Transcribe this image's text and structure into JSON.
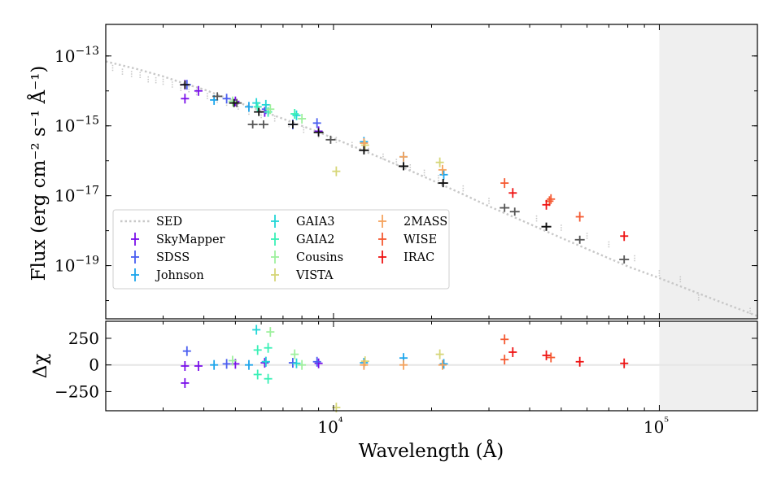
{
  "chart_data": [
    {
      "type": "scatter",
      "panel": "sed",
      "title": "",
      "xlabel": "Wavelength (Å)",
      "ylabel": "Flux (erg cm⁻² s⁻¹ Å⁻¹)",
      "xscale": "log",
      "yscale": "log",
      "xlim": [
        2000,
        200000
      ],
      "ylim": [
        3e-21,
        8e-13
      ],
      "y_ticks": [
        {
          "value": 1e-13,
          "label": "10−13"
        },
        {
          "value": 1e-15,
          "label": "10−15"
        },
        {
          "value": 1e-17,
          "label": "10−17"
        },
        {
          "value": 1e-19,
          "label": "10−19"
        }
      ],
      "shaded_xrange": [
        100000,
        200000
      ],
      "legend_position": "lower-left",
      "legend": [
        "SED",
        "SkyMapper",
        "SDSS",
        "Johnson",
        "GAIA3",
        "GAIA2",
        "Cousins",
        "VISTA",
        "2MASS",
        "WISE",
        "IRAC"
      ],
      "colors": {
        "SED": "#c8c8c8",
        "SkyMapper": "#7a10ea",
        "SDSS": "#4a5ef0",
        "Johnson": "#1ea6ec",
        "GAIA3": "#22d6d6",
        "GAIA2": "#3af0b6",
        "Cousins": "#9ef09e",
        "VISTA": "#d6d678",
        "2MASS": "#f5a35e",
        "WISE": "#f55a32",
        "IRAC": "#ee1212",
        "model": "#555555",
        "model_dark": "#111111"
      },
      "sed_curve": {
        "name": "SED",
        "x": [
          2000,
          2500,
          3000,
          3500,
          4000,
          5000,
          6000,
          7000,
          8000,
          9000,
          10000,
          12000,
          14000,
          16000,
          20000,
          25000,
          30000,
          40000,
          50000,
          60000,
          80000,
          100000,
          150000,
          200000
        ],
        "y": [
          7e-14,
          4.2e-14,
          2.6e-14,
          1.6e-14,
          1.1e-14,
          5e-15,
          2.7e-15,
          1.6e-15,
          1e-15,
          6.6e-16,
          4.4e-16,
          2.2e-16,
          1.2e-16,
          7e-17,
          2.8e-17,
          1.1e-17,
          5e-18,
          1.55e-18,
          6.2e-19,
          3e-19,
          9.5e-20,
          4.4e-20,
          1e-20,
          3.6e-21
        ]
      },
      "sed_scatter": {
        "x": [
          2100,
          2250,
          2400,
          2550,
          2700,
          2850,
          3000,
          3200,
          3400,
          3600,
          3800,
          4100,
          4400,
          4700,
          5100,
          5500,
          6000,
          6600,
          7300,
          8100,
          9000,
          10200,
          11400,
          12800,
          14200,
          15600,
          17200,
          19000,
          21000,
          25000,
          30000,
          36000,
          42000,
          50000,
          60000,
          70000,
          84000,
          100000,
          116000,
          132000,
          190000
        ],
        "y": [
          4.5e-14,
          3.5e-14,
          3e-14,
          2.8e-14,
          2.1e-14,
          2e-14,
          1.8e-14,
          1.5e-14,
          1.2e-14,
          1.1e-14,
          9e-15,
          7e-15,
          5.5e-15,
          4.5e-15,
          3.5e-15,
          2.5e-15,
          2e-15,
          1.6e-15,
          1.1e-15,
          7.6e-16,
          5.5e-16,
          3.9e-16,
          2.8e-16,
          1.9e-16,
          1.3e-16,
          9.2e-17,
          6.4e-17,
          4.5e-17,
          3.2e-17,
          1.6e-17,
          7e-18,
          3.5e-18,
          2.2e-18,
          1.2e-18,
          7e-19,
          4e-19,
          1.6e-19,
          6e-20,
          4e-20,
          1.2e-20,
          5e-21
        ]
      },
      "series": [
        {
          "name": "SkyMapper",
          "points": [
            [
              3500,
              1.5e-14
            ],
            [
              3500,
              6e-15
            ],
            [
              3850,
              1e-14
            ],
            [
              5000,
              5e-15
            ],
            [
              6150,
              2.5e-15
            ],
            [
              9000,
              7e-16
            ]
          ]
        },
        {
          "name": "SDSS",
          "points": [
            [
              3550,
              1.5e-14
            ],
            [
              4700,
              6e-15
            ],
            [
              6200,
              3e-15
            ],
            [
              7500,
              1.1e-15
            ],
            [
              8900,
              1.2e-15
            ]
          ]
        },
        {
          "name": "Johnson",
          "points": [
            [
              4300,
              5.5e-15
            ],
            [
              5500,
              3.5e-15
            ],
            [
              12400,
              3.5e-16
            ],
            [
              16400,
              1.3e-16
            ],
            [
              21800,
              4e-17
            ]
          ]
        },
        {
          "name": "GAIA3",
          "points": [
            [
              5800,
              4.5e-15
            ],
            [
              6200,
              4e-15
            ],
            [
              7700,
              2e-15
            ]
          ]
        },
        {
          "name": "GAIA2",
          "points": [
            [
              5850,
              3.5e-15
            ],
            [
              6300,
              2.5e-15
            ],
            [
              7600,
              2.2e-15
            ]
          ]
        },
        {
          "name": "Cousins",
          "points": [
            [
              4900,
              5e-15
            ],
            [
              6400,
              3e-15
            ],
            [
              8000,
              1.6e-15
            ]
          ]
        },
        {
          "name": "VISTA",
          "points": [
            [
              10200,
              5e-17
            ],
            [
              12500,
              2.8e-16
            ],
            [
              21200,
              9e-17
            ]
          ]
        },
        {
          "name": "2MASS",
          "points": [
            [
              12400,
              3.2e-16
            ],
            [
              16400,
              1.3e-16
            ],
            [
              21600,
              5.5e-17
            ]
          ]
        },
        {
          "name": "WISE",
          "points": [
            [
              33500,
              2.3e-17
            ],
            [
              46000,
              7e-18
            ],
            [
              46500,
              8e-18
            ],
            [
              57000,
              2.5e-18
            ]
          ]
        },
        {
          "name": "IRAC",
          "points": [
            [
              35500,
              1.2e-17
            ],
            [
              45000,
              5.5e-18
            ],
            [
              78000,
              7e-19
            ]
          ]
        },
        {
          "name": "Model (gray)",
          "points": [
            [
              4400,
              7e-15
            ],
            [
              5050,
              4.5e-15
            ],
            [
              5650,
              1.1e-15
            ],
            [
              6100,
              1.1e-15
            ],
            [
              9800,
              4e-16
            ],
            [
              12400,
              2e-16
            ],
            [
              16400,
              7e-17
            ],
            [
              21700,
              2.3e-17
            ],
            [
              33500,
              4.5e-18
            ],
            [
              36000,
              3.5e-18
            ],
            [
              45000,
              1.3e-18
            ],
            [
              57000,
              5.5e-19
            ],
            [
              78000,
              1.5e-19
            ]
          ]
        },
        {
          "name": "Model (dark)",
          "points": [
            [
              3500,
              1.5e-14
            ],
            [
              4950,
              4.5e-15
            ],
            [
              5900,
              2.5e-15
            ],
            [
              7500,
              1.1e-15
            ],
            [
              9000,
              6.5e-16
            ],
            [
              12400,
              2e-16
            ],
            [
              16400,
              7e-17
            ],
            [
              21700,
              2.3e-17
            ],
            [
              45000,
              1.3e-18
            ]
          ]
        }
      ]
    },
    {
      "type": "scatter",
      "panel": "residuals",
      "xlabel": "Wavelength (Å)",
      "ylabel": "Δχ",
      "xscale": "log",
      "xlim": [
        2000,
        200000
      ],
      "ylim": [
        -430,
        410
      ],
      "x_ticks": [
        {
          "value": 10000,
          "label": "10⁴"
        },
        {
          "value": 100000,
          "label": "10⁵"
        }
      ],
      "y_ticks": [
        {
          "value": 250,
          "label": "250"
        },
        {
          "value": 0,
          "label": "0"
        },
        {
          "value": -250,
          "label": "−250"
        }
      ],
      "shaded_xrange": [
        100000,
        200000
      ],
      "series": [
        {
          "name": "SkyMapper",
          "points": [
            [
              3500,
              -170
            ],
            [
              3500,
              -10
            ],
            [
              3850,
              -10
            ],
            [
              5000,
              10
            ],
            [
              6150,
              20
            ],
            [
              9000,
              15
            ]
          ]
        },
        {
          "name": "SDSS",
          "points": [
            [
              3550,
              130
            ],
            [
              4700,
              10
            ],
            [
              6200,
              30
            ],
            [
              7500,
              20
            ],
            [
              8900,
              30
            ]
          ]
        },
        {
          "name": "Johnson",
          "points": [
            [
              4300,
              0
            ],
            [
              5500,
              0
            ],
            [
              12400,
              20
            ],
            [
              16400,
              65
            ],
            [
              21800,
              10
            ]
          ]
        },
        {
          "name": "GAIA3",
          "points": [
            [
              5800,
              330
            ],
            [
              6200,
              30
            ],
            [
              7700,
              15
            ]
          ]
        },
        {
          "name": "GAIA2",
          "points": [
            [
              5850,
              140
            ],
            [
              5850,
              -90
            ],
            [
              6300,
              160
            ],
            [
              6300,
              -130
            ]
          ]
        },
        {
          "name": "Cousins",
          "points": [
            [
              4900,
              40
            ],
            [
              6400,
              310
            ],
            [
              7600,
              100
            ],
            [
              8000,
              0
            ]
          ]
        },
        {
          "name": "VISTA",
          "points": [
            [
              10200,
              -400
            ],
            [
              12500,
              35
            ],
            [
              21200,
              100
            ]
          ]
        },
        {
          "name": "2MASS",
          "points": [
            [
              12400,
              0
            ],
            [
              16400,
              0
            ],
            [
              21600,
              0
            ]
          ]
        },
        {
          "name": "WISE",
          "points": [
            [
              33500,
              240
            ],
            [
              33500,
              50
            ],
            [
              46500,
              70
            ]
          ]
        },
        {
          "name": "IRAC",
          "points": [
            [
              35500,
              120
            ],
            [
              45000,
              90
            ],
            [
              57000,
              30
            ],
            [
              78000,
              15
            ]
          ]
        }
      ]
    }
  ]
}
